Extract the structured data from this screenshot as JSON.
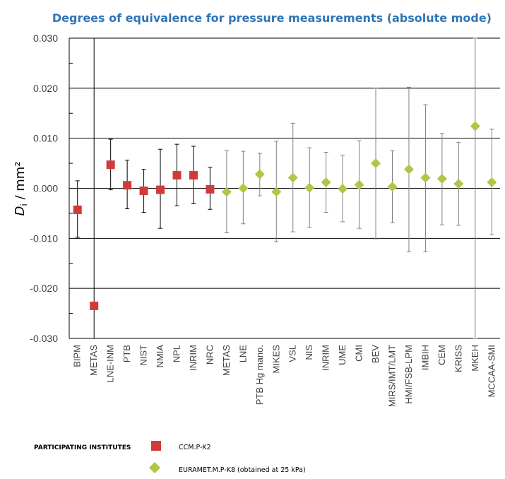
{
  "chart_data": {
    "type": "scatter",
    "title": "Degrees of equivalence for pressure measurements (absolute mode)",
    "ylabel_main": "D",
    "ylabel_sub": "i",
    "ylabel_unit": " / mm²",
    "ylim": [
      -0.03,
      0.03
    ],
    "yticks": [
      0.03,
      0.02,
      0.01,
      0.0,
      -0.01,
      -0.02,
      -0.03
    ],
    "ytick_labels": [
      "0.030",
      "0.020",
      "0.010",
      "0.000",
      "-0.010",
      "-0.020",
      "-0.030"
    ],
    "grid": true,
    "legend_title": "PARTICIPATING INSTITUTES",
    "series": [
      {
        "name": "CCM.P-K2",
        "color": "#d13a3a",
        "marker": "square",
        "points": [
          {
            "label": "BIPM",
            "value": -0.0043,
            "lower": -0.0098,
            "upper": 0.0015
          },
          {
            "label": "METAS",
            "value": -0.0235,
            "lower": -0.03,
            "upper": 0.03
          },
          {
            "label": "LNE-INM",
            "value": 0.0047,
            "lower": -0.0003,
            "upper": 0.0098
          },
          {
            "label": "PTB",
            "value": 0.0006,
            "lower": -0.0041,
            "upper": 0.0056
          },
          {
            "label": "NIST",
            "value": -0.0005,
            "lower": -0.0048,
            "upper": 0.0038
          },
          {
            "label": "NMIA",
            "value": -0.0003,
            "lower": -0.008,
            "upper": 0.0078
          },
          {
            "label": "NPL",
            "value": 0.0026,
            "lower": -0.0035,
            "upper": 0.0088
          },
          {
            "label": "INRIM",
            "value": 0.0026,
            "lower": -0.0031,
            "upper": 0.0084
          },
          {
            "label": "NRC",
            "value": -0.0002,
            "lower": -0.0042,
            "upper": 0.0042
          }
        ]
      },
      {
        "name": "EURAMET.M.P-K8 (obtained at 25 kPa)",
        "color": "#b5c447",
        "marker": "diamond",
        "points": [
          {
            "label": "METAS",
            "value": -0.0007,
            "lower": -0.0089,
            "upper": 0.0075
          },
          {
            "label": "LNE",
            "value": 0.0,
            "lower": -0.0071,
            "upper": 0.0074
          },
          {
            "label": "PTB Hg mano.",
            "value": 0.0028,
            "lower": -0.0015,
            "upper": 0.007
          },
          {
            "label": "MIKES",
            "value": -0.0007,
            "lower": -0.0107,
            "upper": 0.0094
          },
          {
            "label": "VSL",
            "value": 0.0021,
            "lower": -0.0087,
            "upper": 0.013
          },
          {
            "label": "NIS",
            "value": 0.0001,
            "lower": -0.0078,
            "upper": 0.0081
          },
          {
            "label": "INRIM",
            "value": 0.0012,
            "lower": -0.0048,
            "upper": 0.0072
          },
          {
            "label": "UME",
            "value": -0.0001,
            "lower": -0.0067,
            "upper": 0.0066
          },
          {
            "label": "CMI",
            "value": 0.0007,
            "lower": -0.008,
            "upper": 0.0095
          },
          {
            "label": "BEV",
            "value": 0.005,
            "lower": -0.0101,
            "upper": 0.02
          },
          {
            "label": "MIRS/IMT/LMT",
            "value": 0.0003,
            "lower": -0.0069,
            "upper": 0.0075
          },
          {
            "label": "HMI/FSB-LPM",
            "value": 0.0038,
            "lower": -0.0127,
            "upper": 0.0202
          },
          {
            "label": "IMBIH",
            "value": 0.0021,
            "lower": -0.0127,
            "upper": 0.0167
          },
          {
            "label": "CEM",
            "value": 0.0019,
            "lower": -0.0073,
            "upper": 0.011
          },
          {
            "label": "KRISS",
            "value": 0.0009,
            "lower": -0.0074,
            "upper": 0.0092
          },
          {
            "label": "MKEH",
            "value": 0.0124,
            "lower": -0.03,
            "upper": 0.03
          },
          {
            "label": "MCCAA-SMI",
            "value": 0.0012,
            "lower": -0.0093,
            "upper": 0.0118
          }
        ]
      }
    ]
  }
}
